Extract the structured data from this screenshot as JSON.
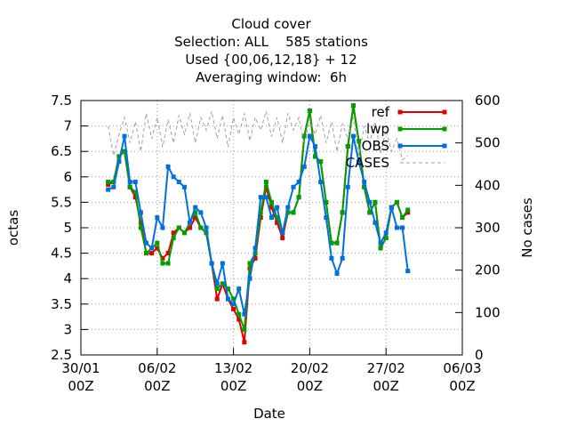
{
  "chart_data": {
    "type": "line",
    "title": [
      "Cloud cover",
      "Selection: ALL    585 stations",
      "Used {00,06,12,18} + 12",
      "Averaging window:  6h"
    ],
    "xlabel": "Date",
    "ylabel": "octas",
    "y2label": "No cases",
    "x": [
      "01/02 12Z",
      "02/02 00Z",
      "02/02 12Z",
      "03/02 00Z",
      "03/02 12Z",
      "04/02 00Z",
      "04/02 12Z",
      "05/02 00Z",
      "05/02 12Z",
      "06/02 00Z",
      "06/02 12Z",
      "07/02 00Z",
      "07/02 12Z",
      "08/02 00Z",
      "08/02 12Z",
      "09/02 00Z",
      "09/02 12Z",
      "10/02 00Z",
      "10/02 12Z",
      "11/02 00Z",
      "11/02 12Z",
      "12/02 00Z",
      "12/02 12Z",
      "13/02 00Z",
      "13/02 12Z",
      "14/02 00Z",
      "14/02 12Z",
      "15/02 00Z",
      "15/02 12Z",
      "16/02 00Z",
      "16/02 12Z",
      "17/02 00Z",
      "17/02 12Z",
      "18/02 00Z",
      "18/02 12Z",
      "19/02 00Z",
      "19/02 12Z",
      "20/02 00Z",
      "20/02 12Z",
      "21/02 00Z",
      "21/02 12Z",
      "22/02 00Z",
      "22/02 12Z",
      "23/02 00Z",
      "23/02 12Z",
      "24/02 00Z",
      "24/02 12Z",
      "25/02 00Z",
      "25/02 12Z",
      "26/02 00Z",
      "26/02 12Z",
      "27/02 00Z",
      "27/02 12Z",
      "28/02 00Z",
      "28/02 12Z",
      "01/03 00Z"
    ],
    "xlim": [
      "30/01 00Z",
      "06/03 00Z"
    ],
    "xticks": [
      "30/01 00Z",
      "06/02 00Z",
      "13/02 00Z",
      "20/02 00Z",
      "27/02 00Z",
      "06/03 00Z"
    ],
    "ylim": [
      2.5,
      7.5
    ],
    "yticks": [
      2.5,
      3,
      3.5,
      4,
      4.5,
      5,
      5.5,
      6,
      6.5,
      7,
      7.5
    ],
    "y2lim": [
      0,
      600
    ],
    "y2ticks": [
      0,
      100,
      200,
      300,
      400,
      500,
      600
    ],
    "grid": true,
    "legend": "top-right",
    "series": [
      {
        "name": "ref",
        "color": "#e00000",
        "values": [
          5.85,
          5.9,
          6.4,
          6.5,
          5.8,
          5.6,
          5.1,
          4.5,
          4.5,
          4.6,
          4.4,
          4.5,
          4.9,
          5.0,
          4.9,
          5.0,
          5.2,
          5.0,
          4.9,
          4.3,
          3.6,
          3.9,
          3.6,
          3.4,
          3.2,
          2.75,
          4.2,
          4.4,
          5.2,
          5.8,
          5.4,
          5.1,
          4.8,
          5.3,
          5.3,
          5.6,
          6.8,
          7.3,
          6.4,
          6.3,
          5.5,
          4.7,
          4.7,
          5.3,
          6.6,
          7.4,
          6.7,
          5.8,
          5.3,
          5.5,
          4.6,
          4.8,
          5.4,
          5.5,
          5.2,
          5.3
        ]
      },
      {
        "name": "lwp",
        "color": "#00a000",
        "values": [
          5.9,
          5.9,
          6.4,
          6.5,
          5.8,
          5.7,
          5.0,
          4.5,
          4.6,
          4.7,
          4.3,
          4.3,
          4.8,
          5.0,
          4.9,
          5.1,
          5.3,
          5.0,
          4.9,
          4.3,
          3.8,
          3.9,
          3.8,
          3.6,
          3.3,
          3.0,
          4.3,
          4.5,
          5.3,
          5.9,
          5.5,
          5.2,
          4.9,
          5.3,
          5.3,
          5.6,
          6.8,
          7.3,
          6.4,
          6.3,
          5.5,
          4.7,
          4.7,
          5.3,
          6.6,
          7.4,
          6.7,
          5.8,
          5.3,
          5.5,
          4.6,
          4.8,
          5.4,
          5.5,
          5.2,
          5.35
        ]
      },
      {
        "name": "OBS",
        "color": "#0070e0",
        "values": [
          5.75,
          5.8,
          6.3,
          6.8,
          5.9,
          5.9,
          5.3,
          4.7,
          4.6,
          5.2,
          5.0,
          6.2,
          6.0,
          5.9,
          5.8,
          5.1,
          5.4,
          5.3,
          5.0,
          4.3,
          3.9,
          4.3,
          3.6,
          3.5,
          3.8,
          3.3,
          4.0,
          4.6,
          5.6,
          5.6,
          5.2,
          5.4,
          4.9,
          5.4,
          5.8,
          5.9,
          6.2,
          6.8,
          6.6,
          5.9,
          5.2,
          4.4,
          4.1,
          4.4,
          5.8,
          6.8,
          6.3,
          5.9,
          5.5,
          5.1,
          4.7,
          4.9,
          5.4,
          5.0,
          5.0,
          4.15
        ]
      },
      {
        "name": "CASES",
        "color": "#a0a0a0",
        "axis": "y2",
        "values": [
          540,
          470,
          520,
          560,
          500,
          550,
          480,
          570,
          510,
          560,
          490,
          555,
          500,
          565,
          520,
          570,
          500,
          560,
          530,
          575,
          510,
          565,
          490,
          560,
          520,
          570,
          505,
          560,
          530,
          575,
          515,
          560,
          500,
          570,
          530,
          560,
          495,
          555,
          520,
          565,
          500,
          550,
          480,
          545,
          510,
          560,
          470,
          540,
          500,
          550,
          475,
          530,
          480,
          510,
          460,
          470
        ]
      }
    ]
  }
}
